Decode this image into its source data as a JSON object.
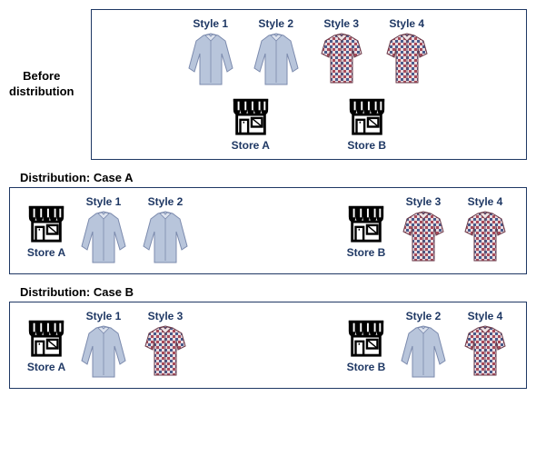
{
  "colors": {
    "border": "#1f3864",
    "text_navy": "#1f3864",
    "text_black": "#000000",
    "store_black": "#000000",
    "shirt_long_fill": "#b8c5db",
    "shirt_long_stroke": "#7b8aad",
    "shirt_short_fill": "#ffffff",
    "shirt_short_stroke": "#8b3a4a",
    "shirt_short_check": "#a64b5b"
  },
  "before": {
    "title_line1": "Before",
    "title_line2": "distribution",
    "styles": [
      {
        "label": "Style 1",
        "type": "long"
      },
      {
        "label": "Style 2",
        "type": "long"
      },
      {
        "label": "Style 3",
        "type": "short"
      },
      {
        "label": "Style 4",
        "type": "short"
      }
    ],
    "stores": [
      {
        "label": "Store A"
      },
      {
        "label": "Store B"
      }
    ]
  },
  "caseA": {
    "title": "Distribution: Case A",
    "left_store": "Store A",
    "left_styles": [
      {
        "label": "Style 1",
        "type": "long"
      },
      {
        "label": "Style 2",
        "type": "long"
      }
    ],
    "right_store": "Store B",
    "right_styles": [
      {
        "label": "Style 3",
        "type": "short"
      },
      {
        "label": "Style 4",
        "type": "short"
      }
    ]
  },
  "caseB": {
    "title": "Distribution: Case B",
    "left_store": "Store A",
    "left_styles": [
      {
        "label": "Style 1",
        "type": "long"
      },
      {
        "label": "Style 3",
        "type": "short"
      }
    ],
    "right_store": "Store B",
    "right_styles": [
      {
        "label": "Style 2",
        "type": "long"
      },
      {
        "label": "Style 4",
        "type": "short"
      }
    ]
  }
}
